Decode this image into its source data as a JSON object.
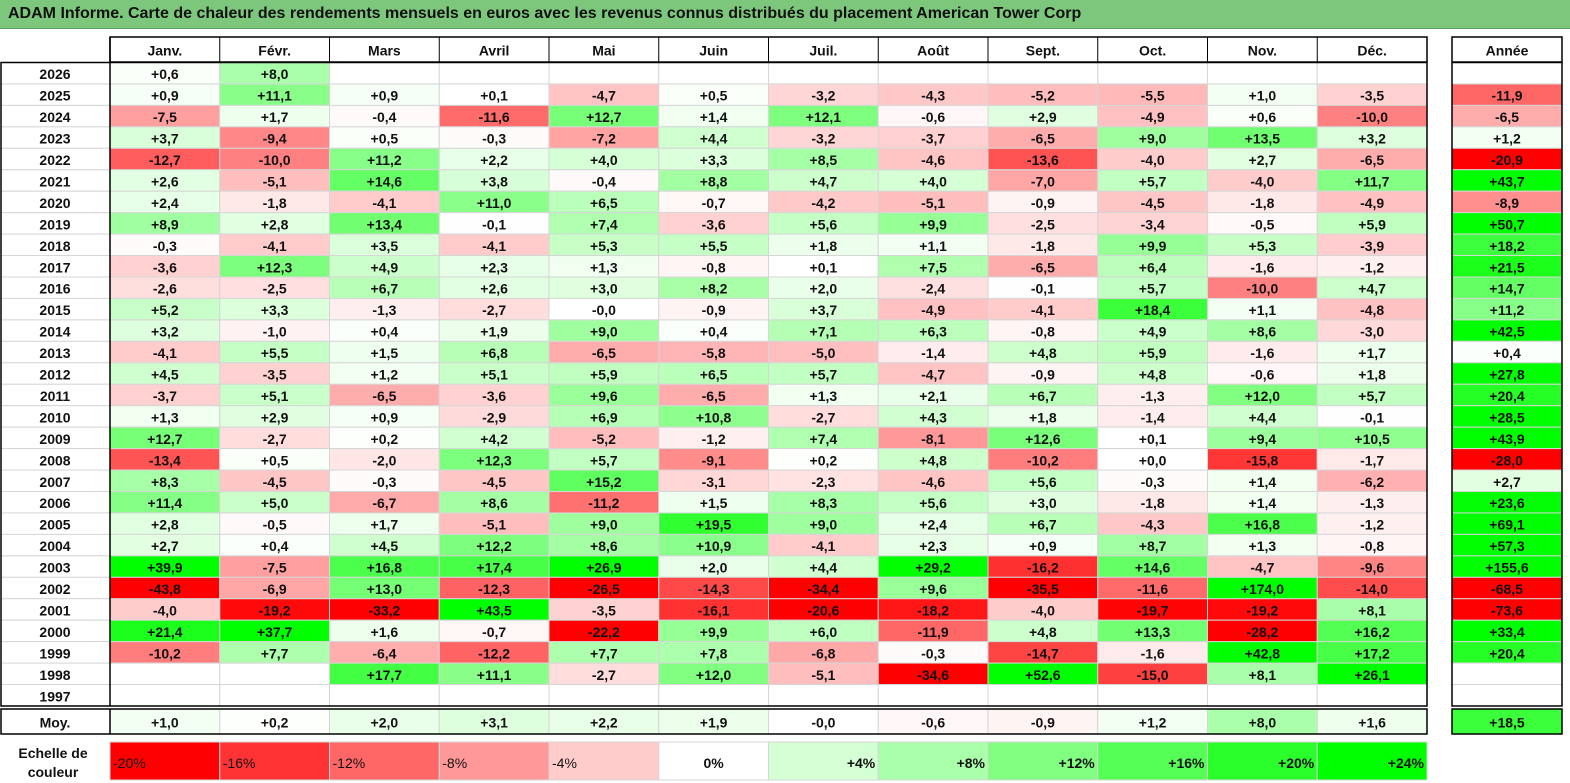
{
  "title": "ADAM Informe. Carte de chaleur des rendements mensuels en euros avec les revenus connus distribués du placement American Tower Corp",
  "chart_data": {
    "type": "heatmap",
    "months": [
      "Janv.",
      "Févr.",
      "Mars",
      "Avril",
      "Mai",
      "Juin",
      "Juil.",
      "Août",
      "Sept.",
      "Oct.",
      "Nov.",
      "Déc."
    ],
    "year_header": "Année",
    "rows": [
      {
        "year": "2026",
        "values": [
          "+0,6",
          "+8,0",
          "",
          "",
          "",
          "",
          "",
          "",
          "",
          "",
          "",
          ""
        ],
        "annual": ""
      },
      {
        "year": "2025",
        "values": [
          "+0,9",
          "+11,1",
          "+0,9",
          "+0,1",
          "-4,7",
          "+0,5",
          "-3,2",
          "-4,3",
          "-5,2",
          "-5,5",
          "+1,0",
          "-3,5"
        ],
        "annual": "-11,9"
      },
      {
        "year": "2024",
        "values": [
          "-7,5",
          "+1,7",
          "-0,4",
          "-11,6",
          "+12,7",
          "+1,4",
          "+12,1",
          "-0,6",
          "+2,9",
          "-4,9",
          "+0,6",
          "-10,0"
        ],
        "annual": "-6,5"
      },
      {
        "year": "2023",
        "values": [
          "+3,7",
          "-9,4",
          "+0,5",
          "-0,3",
          "-7,2",
          "+4,4",
          "-3,2",
          "-3,7",
          "-6,5",
          "+9,0",
          "+13,5",
          "+3,2"
        ],
        "annual": "+1,2"
      },
      {
        "year": "2022",
        "values": [
          "-12,7",
          "-10,0",
          "+11,2",
          "+2,2",
          "+4,0",
          "+3,3",
          "+8,5",
          "-4,6",
          "-13,6",
          "-4,0",
          "+2,7",
          "-6,5"
        ],
        "annual": "-20,9"
      },
      {
        "year": "2021",
        "values": [
          "+2,6",
          "-5,1",
          "+14,6",
          "+3,8",
          "-0,4",
          "+8,8",
          "+4,7",
          "+4,0",
          "-7,0",
          "+5,7",
          "-4,0",
          "+11,7"
        ],
        "annual": "+43,7"
      },
      {
        "year": "2020",
        "values": [
          "+2,4",
          "-1,8",
          "-4,1",
          "+11,0",
          "+6,5",
          "-0,7",
          "-4,2",
          "-5,1",
          "-0,9",
          "-4,5",
          "-1,8",
          "-4,9"
        ],
        "annual": "-8,9"
      },
      {
        "year": "2019",
        "values": [
          "+8,9",
          "+2,8",
          "+13,4",
          "-0,1",
          "+7,4",
          "-3,6",
          "+5,6",
          "+9,9",
          "-2,5",
          "-3,4",
          "-0,5",
          "+5,9"
        ],
        "annual": "+50,7"
      },
      {
        "year": "2018",
        "values": [
          "-0,3",
          "-4,1",
          "+3,5",
          "-4,1",
          "+5,3",
          "+5,5",
          "+1,8",
          "+1,1",
          "-1,8",
          "+9,9",
          "+5,3",
          "-3,9"
        ],
        "annual": "+18,2"
      },
      {
        "year": "2017",
        "values": [
          "-3,6",
          "+12,3",
          "+4,9",
          "+2,3",
          "+1,3",
          "-0,8",
          "+0,1",
          "+7,5",
          "-6,5",
          "+6,4",
          "-1,6",
          "-1,2"
        ],
        "annual": "+21,5"
      },
      {
        "year": "2016",
        "values": [
          "-2,6",
          "-2,5",
          "+6,7",
          "+2,6",
          "+3,0",
          "+8,2",
          "+2,0",
          "-2,4",
          "-0,1",
          "+5,7",
          "-10,0",
          "+4,7"
        ],
        "annual": "+14,7"
      },
      {
        "year": "2015",
        "values": [
          "+5,2",
          "+3,3",
          "-1,3",
          "-2,7",
          "-0,0",
          "-0,9",
          "+3,7",
          "-4,9",
          "-4,1",
          "+18,4",
          "+1,1",
          "-4,8"
        ],
        "annual": "+11,2"
      },
      {
        "year": "2014",
        "values": [
          "+3,2",
          "-1,0",
          "+0,4",
          "+1,9",
          "+9,0",
          "+0,4",
          "+7,1",
          "+6,3",
          "-0,8",
          "+4,9",
          "+8,6",
          "-3,0"
        ],
        "annual": "+42,5"
      },
      {
        "year": "2013",
        "values": [
          "-4,1",
          "+5,5",
          "+1,5",
          "+6,8",
          "-6,5",
          "-5,8",
          "-5,0",
          "-1,4",
          "+4,8",
          "+5,9",
          "-1,6",
          "+1,7"
        ],
        "annual": "+0,4"
      },
      {
        "year": "2012",
        "values": [
          "+4,5",
          "-3,5",
          "+1,2",
          "+5,1",
          "+5,9",
          "+6,5",
          "+5,7",
          "-4,7",
          "-0,9",
          "+4,8",
          "-0,6",
          "+1,8"
        ],
        "annual": "+27,8"
      },
      {
        "year": "2011",
        "values": [
          "-3,7",
          "+5,1",
          "-6,5",
          "-3,6",
          "+9,6",
          "-6,5",
          "+1,3",
          "+2,1",
          "+6,7",
          "-1,3",
          "+12,0",
          "+5,7"
        ],
        "annual": "+20,4"
      },
      {
        "year": "2010",
        "values": [
          "+1,3",
          "+2,9",
          "+0,9",
          "-2,9",
          "+6,9",
          "+10,8",
          "-2,7",
          "+4,3",
          "+1,8",
          "-1,4",
          "+4,4",
          "-0,1"
        ],
        "annual": "+28,5"
      },
      {
        "year": "2009",
        "values": [
          "+12,7",
          "-2,7",
          "+0,2",
          "+4,2",
          "-5,2",
          "-1,2",
          "+7,4",
          "-8,1",
          "+12,6",
          "+0,1",
          "+9,4",
          "+10,5"
        ],
        "annual": "+43,9"
      },
      {
        "year": "2008",
        "values": [
          "-13,4",
          "+0,5",
          "-2,0",
          "+12,3",
          "+5,7",
          "-9,1",
          "+0,2",
          "+4,8",
          "-10,2",
          "+0,0",
          "-15,8",
          "-1,7"
        ],
        "annual": "-28,0"
      },
      {
        "year": "2007",
        "values": [
          "+8,3",
          "-4,5",
          "-0,3",
          "-4,5",
          "+15,2",
          "-3,1",
          "-2,3",
          "-4,6",
          "+5,6",
          "-0,3",
          "+1,4",
          "-6,2"
        ],
        "annual": "+2,7"
      },
      {
        "year": "2006",
        "values": [
          "+11,4",
          "+5,0",
          "-6,7",
          "+8,6",
          "-11,2",
          "+1,5",
          "+8,3",
          "+5,6",
          "+3,0",
          "-1,8",
          "+1,4",
          "-1,3"
        ],
        "annual": "+23,6"
      },
      {
        "year": "2005",
        "values": [
          "+2,8",
          "-0,5",
          "+1,7",
          "-5,1",
          "+9,0",
          "+19,5",
          "+9,0",
          "+2,4",
          "+6,7",
          "-4,3",
          "+16,8",
          "-1,2"
        ],
        "annual": "+69,1"
      },
      {
        "year": "2004",
        "values": [
          "+2,7",
          "+0,4",
          "+4,5",
          "+12,2",
          "+8,6",
          "+10,9",
          "-4,1",
          "+2,3",
          "+0,9",
          "+8,7",
          "+1,3",
          "-0,8"
        ],
        "annual": "+57,3"
      },
      {
        "year": "2003",
        "values": [
          "+39,9",
          "-7,5",
          "+16,8",
          "+17,4",
          "+26,9",
          "+2,0",
          "+4,4",
          "+29,2",
          "-16,2",
          "+14,6",
          "-4,7",
          "-9,6"
        ],
        "annual": "+155,6"
      },
      {
        "year": "2002",
        "values": [
          "-43,8",
          "-6,9",
          "+13,0",
          "-12,3",
          "-26,5",
          "-14,3",
          "-34,4",
          "+9,6",
          "-35,5",
          "-11,6",
          "+174,0",
          "-14,0"
        ],
        "annual": "-68,5"
      },
      {
        "year": "2001",
        "values": [
          "-4,0",
          "-19,2",
          "-33,2",
          "+43,5",
          "-3,5",
          "-16,1",
          "-20,6",
          "-18,2",
          "-4,0",
          "-19,7",
          "-19,2",
          "+8,1"
        ],
        "annual": "-73,6"
      },
      {
        "year": "2000",
        "values": [
          "+21,4",
          "+37,7",
          "+1,6",
          "-0,7",
          "-22,2",
          "+9,9",
          "+6,0",
          "-11,9",
          "+4,8",
          "+13,3",
          "-28,2",
          "+16,2"
        ],
        "annual": "+33,4"
      },
      {
        "year": "1999",
        "values": [
          "-10,2",
          "+7,7",
          "-6,4",
          "-12,2",
          "+7,7",
          "+7,8",
          "-6,8",
          "-0,3",
          "-14,7",
          "-1,6",
          "+42,8",
          "+17,2"
        ],
        "annual": "+20,4"
      },
      {
        "year": "1998",
        "values": [
          "",
          "",
          "+17,7",
          "+11,1",
          "-2,7",
          "+12,0",
          "-5,1",
          "-34,6",
          "+52,6",
          "-15,0",
          "+8,1",
          "+26,1"
        ],
        "annual": ""
      },
      {
        "year": "1997",
        "values": [
          "",
          "",
          "",
          "",
          "",
          "",
          "",
          "",
          "",
          "",
          "",
          ""
        ],
        "annual": ""
      }
    ],
    "average": {
      "label": "Moy.",
      "values": [
        "+1,0",
        "+0,2",
        "+2,0",
        "+3,1",
        "+2,2",
        "+1,9",
        "-0,0",
        "-0,6",
        "-0,9",
        "+1,2",
        "+8,0",
        "+1,6"
      ],
      "annual": "+18,5"
    },
    "color_scale": {
      "label_line1": "Echelle de",
      "label_line2": "couleur",
      "stops": [
        "-20%",
        "-16%",
        "-12%",
        "-8%",
        "-4%",
        "0%",
        "+4%",
        "+8%",
        "+12%",
        "+16%",
        "+20%",
        "+24%"
      ]
    },
    "colors": {
      "negative": "#ff0000",
      "positive": "#00ff00",
      "neutral": "#ffffff",
      "title_bar": "#7dc77d"
    }
  }
}
